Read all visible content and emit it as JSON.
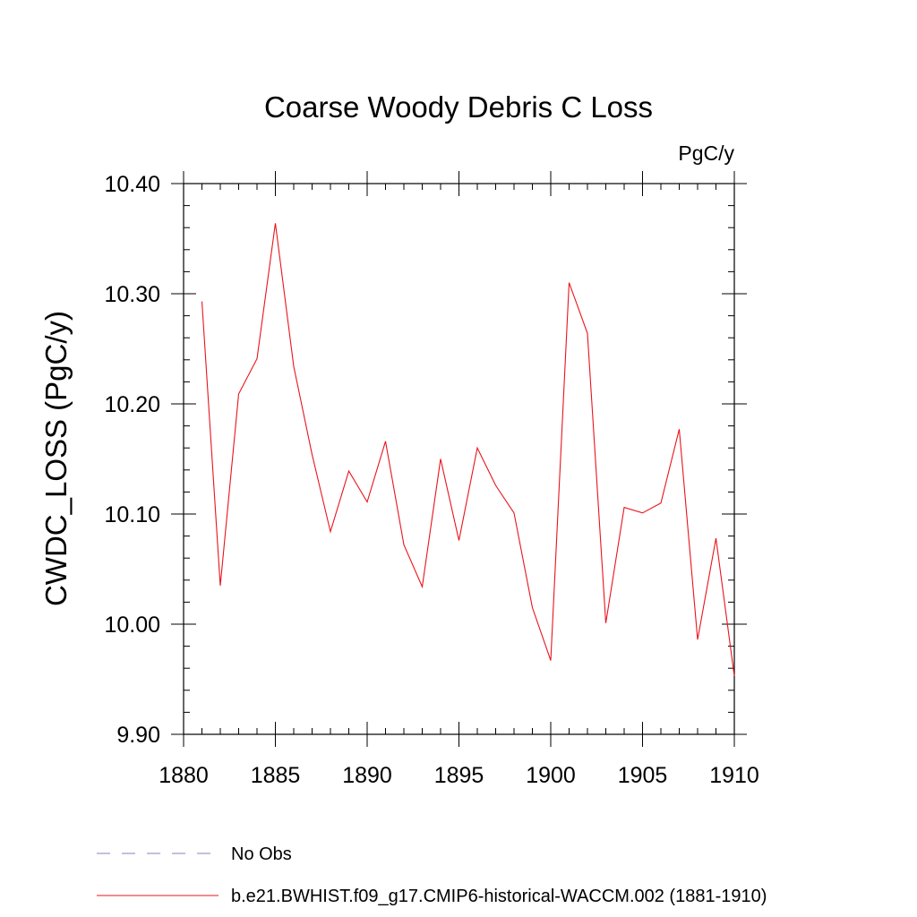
{
  "chart_data": {
    "type": "line",
    "title": "Coarse Woody Debris C Loss",
    "units": "PgC/y",
    "xlabel": "",
    "ylabel": "CWDC_LOSS  (PgC/y)",
    "xlim": [
      1880,
      1910
    ],
    "ylim": [
      9.9,
      10.4
    ],
    "x_ticks": [
      1880,
      1885,
      1890,
      1895,
      1900,
      1905,
      1910
    ],
    "x_tick_labels": [
      "1880",
      "1885",
      "1890",
      "1895",
      "1900",
      "1905",
      "1910"
    ],
    "y_ticks": [
      9.9,
      10.0,
      10.1,
      10.2,
      10.3,
      10.4
    ],
    "y_tick_labels": [
      "9.90",
      "10.00",
      "10.10",
      "10.20",
      "10.30",
      "10.40"
    ],
    "grid": false,
    "legend_position": "bottom",
    "legend": [
      {
        "label": "No Obs",
        "color": "#8a7fc0",
        "style": "dashed"
      },
      {
        "label": "b.e21.BWHIST.f09_g17.CMIP6-historical-WACCM.002 (1881-1910)",
        "color": "#e8141c",
        "style": "solid"
      }
    ],
    "series": [
      {
        "name": "b.e21.BWHIST.f09_g17.CMIP6-historical-WACCM.002 (1881-1910)",
        "color": "#e8141c",
        "x": [
          1881,
          1882,
          1883,
          1884,
          1885,
          1886,
          1887,
          1888,
          1889,
          1890,
          1891,
          1892,
          1893,
          1894,
          1895,
          1896,
          1897,
          1898,
          1899,
          1900,
          1901,
          1902,
          1903,
          1904,
          1905,
          1906,
          1907,
          1908,
          1909,
          1910
        ],
        "values": [
          10.293,
          10.035,
          10.209,
          10.241,
          10.364,
          10.234,
          10.154,
          10.084,
          10.139,
          10.111,
          10.166,
          10.072,
          10.034,
          10.15,
          10.076,
          10.16,
          10.126,
          10.101,
          10.015,
          9.967,
          10.31,
          10.264,
          10.001,
          10.106,
          10.101,
          10.11,
          10.177,
          9.986,
          10.078,
          9.953
        ]
      }
    ]
  }
}
